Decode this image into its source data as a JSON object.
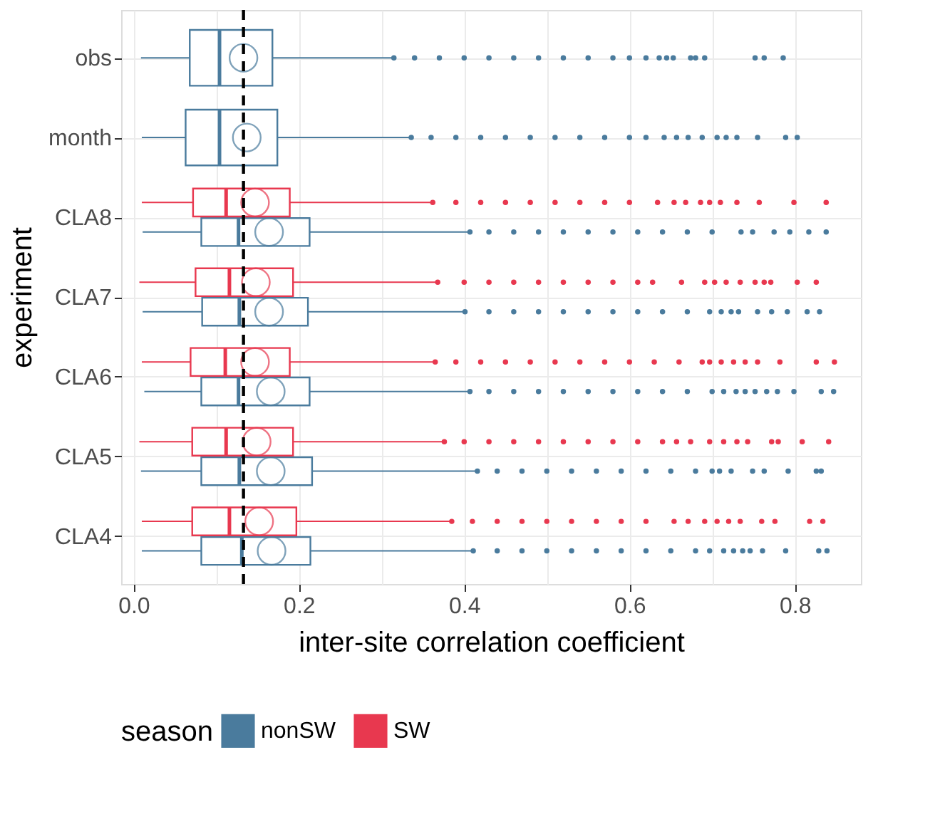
{
  "chart_data": {
    "type": "box",
    "orientation": "horizontal",
    "xlabel": "inter-site correlation coefficient",
    "ylabel": "experiment",
    "legend_title": "season",
    "legend": "bottom",
    "grid": true,
    "categories": [
      "obs",
      "month",
      "CLA8",
      "CLA7",
      "CLA6",
      "CLA5",
      "CLA4"
    ],
    "xlim": [
      -0.015,
      0.88
    ],
    "xticks": [
      {
        "value": 0,
        "label": "0.0"
      },
      {
        "value": 0.1,
        "label": null
      },
      {
        "value": 0.2,
        "label": "0.2"
      },
      {
        "value": 0.3,
        "label": null
      },
      {
        "value": 0.4,
        "label": "0.4"
      },
      {
        "value": 0.5,
        "label": null
      },
      {
        "value": 0.6,
        "label": "0.6"
      },
      {
        "value": 0.7,
        "label": null
      },
      {
        "value": 0.8,
        "label": "0.8"
      }
    ],
    "ref_lines": [
      {
        "axis": "x",
        "value": 0.133,
        "color": "#000000",
        "line_style": "dashed"
      }
    ],
    "series": [
      {
        "name": "nonSW",
        "color": "#4a7b9d",
        "boxes": [
          {
            "low": 0.009,
            "q1": 0.068,
            "median": 0.104,
            "q3": 0.168,
            "high": 0.315,
            "mean": 0.133,
            "outliers": [
              0.315,
              0.34,
              0.37,
              0.4,
              0.43,
              0.46,
              0.49,
              0.52,
              0.55,
              0.58,
              0.6,
              0.62,
              0.636,
              0.645,
              0.653,
              0.674,
              0.68,
              0.691,
              0.752,
              0.763,
              0.786
            ]
          },
          {
            "low": 0.01,
            "q1": 0.063,
            "median": 0.104,
            "q3": 0.174,
            "high": 0.336,
            "mean": 0.137,
            "outliers": [
              0.336,
              0.36,
              0.39,
              0.42,
              0.45,
              0.48,
              0.51,
              0.54,
              0.57,
              0.6,
              0.62,
              0.642,
              0.657,
              0.671,
              0.688,
              0.706,
              0.717,
              0.73,
              0.755,
              0.789,
              0.803
            ]
          },
          {
            "low": 0.011,
            "q1": 0.082,
            "median": 0.127,
            "q3": 0.213,
            "high": 0.407,
            "mean": 0.164,
            "outliers": [
              0.407,
              0.43,
              0.46,
              0.49,
              0.52,
              0.55,
              0.58,
              0.61,
              0.64,
              0.67,
              0.7,
              0.735,
              0.749,
              0.775,
              0.794,
              0.817,
              0.838
            ]
          },
          {
            "low": 0.011,
            "q1": 0.083,
            "median": 0.128,
            "q3": 0.211,
            "high": 0.401,
            "mean": 0.164,
            "outliers": [
              0.401,
              0.43,
              0.46,
              0.49,
              0.52,
              0.55,
              0.58,
              0.61,
              0.64,
              0.67,
              0.697,
              0.711,
              0.723,
              0.732,
              0.755,
              0.772,
              0.791,
              0.815,
              0.83
            ]
          },
          {
            "low": 0.013,
            "q1": 0.082,
            "median": 0.127,
            "q3": 0.213,
            "high": 0.407,
            "mean": 0.166,
            "outliers": [
              0.407,
              0.43,
              0.46,
              0.49,
              0.52,
              0.55,
              0.58,
              0.61,
              0.64,
              0.67,
              0.7,
              0.714,
              0.729,
              0.74,
              0.752,
              0.766,
              0.779,
              0.799,
              0.832,
              0.847
            ]
          },
          {
            "low": 0.009,
            "q1": 0.082,
            "median": 0.128,
            "q3": 0.216,
            "high": 0.416,
            "mean": 0.166,
            "outliers": [
              0.416,
              0.44,
              0.47,
              0.5,
              0.53,
              0.56,
              0.59,
              0.62,
              0.65,
              0.68,
              0.7,
              0.709,
              0.723,
              0.749,
              0.763,
              0.792,
              0.826,
              0.832
            ]
          },
          {
            "low": 0.01,
            "q1": 0.082,
            "median": 0.131,
            "q3": 0.214,
            "high": 0.411,
            "mean": 0.167,
            "outliers": [
              0.411,
              0.44,
              0.47,
              0.5,
              0.53,
              0.56,
              0.59,
              0.62,
              0.65,
              0.68,
              0.697,
              0.714,
              0.726,
              0.737,
              0.746,
              0.761,
              0.789,
              0.829,
              0.839
            ]
          }
        ]
      },
      {
        "name": "SW",
        "color": "#e8384f",
        "boxes": [
          null,
          null,
          {
            "low": 0.01,
            "q1": 0.072,
            "median": 0.112,
            "q3": 0.189,
            "high": 0.362,
            "mean": 0.147,
            "outliers": [
              0.362,
              0.39,
              0.42,
              0.45,
              0.48,
              0.51,
              0.54,
              0.57,
              0.6,
              0.634,
              0.654,
              0.668,
              0.686,
              0.697,
              0.71,
              0.73,
              0.757,
              0.799,
              0.838
            ]
          },
          {
            "low": 0.007,
            "q1": 0.075,
            "median": 0.116,
            "q3": 0.193,
            "high": 0.368,
            "mean": 0.148,
            "outliers": [
              0.368,
              0.4,
              0.43,
              0.46,
              0.49,
              0.52,
              0.55,
              0.58,
              0.61,
              0.628,
              0.663,
              0.691,
              0.703,
              0.717,
              0.734,
              0.752,
              0.763,
              0.771,
              0.803,
              0.826
            ]
          },
          {
            "low": 0.01,
            "q1": 0.069,
            "median": 0.111,
            "q3": 0.189,
            "high": 0.365,
            "mean": 0.147,
            "outliers": [
              0.365,
              0.39,
              0.42,
              0.45,
              0.48,
              0.51,
              0.54,
              0.57,
              0.6,
              0.63,
              0.66,
              0.688,
              0.697,
              0.711,
              0.726,
              0.74,
              0.755,
              0.782,
              0.826,
              0.848
            ]
          },
          {
            "low": 0.007,
            "q1": 0.071,
            "median": 0.112,
            "q3": 0.193,
            "high": 0.376,
            "mean": 0.149,
            "outliers": [
              0.376,
              0.4,
              0.43,
              0.46,
              0.49,
              0.52,
              0.55,
              0.58,
              0.61,
              0.64,
              0.657,
              0.674,
              0.697,
              0.714,
              0.73,
              0.743,
              0.772,
              0.78,
              0.809,
              0.841
            ]
          },
          {
            "low": 0.01,
            "q1": 0.071,
            "median": 0.116,
            "q3": 0.197,
            "high": 0.385,
            "mean": 0.152,
            "outliers": [
              0.385,
              0.41,
              0.44,
              0.47,
              0.5,
              0.53,
              0.56,
              0.59,
              0.62,
              0.654,
              0.671,
              0.691,
              0.706,
              0.72,
              0.734,
              0.76,
              0.776,
              0.818,
              0.834
            ]
          }
        ]
      }
    ]
  }
}
